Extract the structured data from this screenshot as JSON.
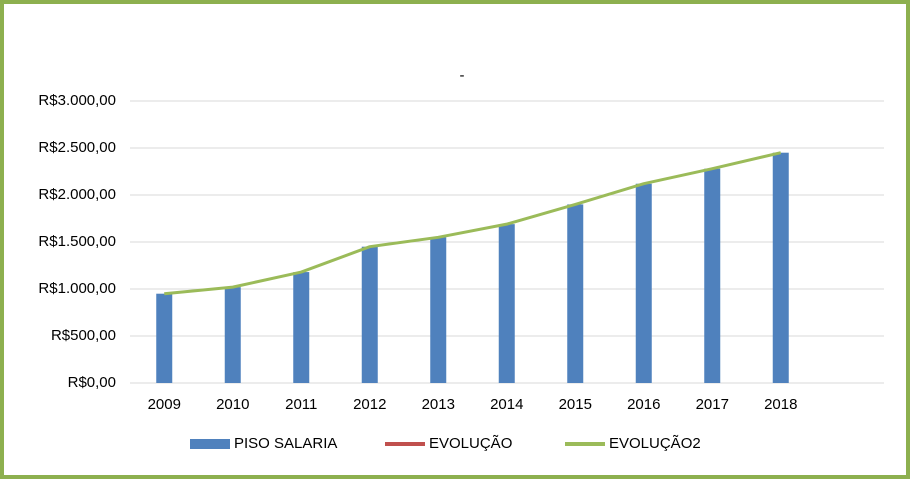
{
  "chart_data": {
    "type": "bar",
    "title": "-",
    "categories": [
      "2009",
      "2010",
      "2011",
      "2012",
      "2013",
      "2014",
      "2015",
      "2016",
      "2017",
      "2018"
    ],
    "series": [
      {
        "name": "PISO SALARIA",
        "type": "bar",
        "color": "#4f81bd",
        "values": [
          950,
          1020,
          1180,
          1450,
          1550,
          1690,
          1900,
          2120,
          2280,
          2450
        ]
      },
      {
        "name": "EVOLUÇÃO",
        "type": "line",
        "color": "#c0504d",
        "values": [
          null,
          null,
          null,
          null,
          null,
          null,
          null,
          null,
          null,
          null
        ]
      },
      {
        "name": "EVOLUÇÃO2",
        "type": "line",
        "color": "#9bbb59",
        "values": [
          950,
          1020,
          1180,
          1450,
          1550,
          1690,
          1900,
          2120,
          2280,
          2450
        ]
      }
    ],
    "ylim": [
      0,
      3000
    ],
    "yticks": [
      {
        "value": 0,
        "label": "R$0,00"
      },
      {
        "value": 500,
        "label": "R$500,00"
      },
      {
        "value": 1000,
        "label": "R$1.000,00"
      },
      {
        "value": 1500,
        "label": "R$1.500,00"
      },
      {
        "value": 2000,
        "label": "R$2.000,00"
      },
      {
        "value": 2500,
        "label": "R$2.500,00"
      },
      {
        "value": 3000,
        "label": "R$3.000,00"
      }
    ],
    "grid": true,
    "legend": "bottom"
  }
}
